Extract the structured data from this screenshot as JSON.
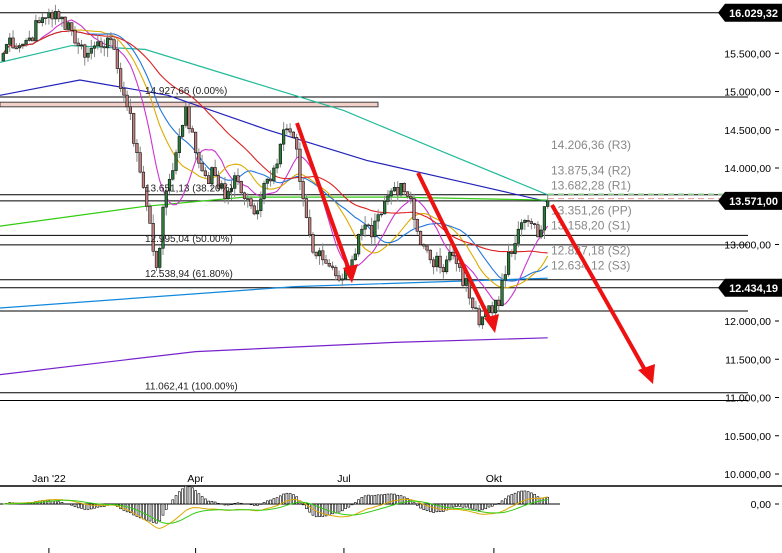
{
  "chart_data": {
    "type": "candlestick",
    "y_scale": "linear",
    "ylim": [
      9900,
      16200
    ],
    "xlim": [
      "2021-12-02",
      "2022-11-10"
    ],
    "grid": false,
    "y_ticks": [
      {
        "value": 15500,
        "label": "15.500,00"
      },
      {
        "value": 15000,
        "label": "15.000,00"
      },
      {
        "value": 14500,
        "label": "14.500,00"
      },
      {
        "value": 14000,
        "label": "14.000,00"
      },
      {
        "value": 13000,
        "label": "13.000,00"
      },
      {
        "value": 12000,
        "label": "12.000,00"
      },
      {
        "value": 11500,
        "label": "11.500,00"
      },
      {
        "value": 11000,
        "label": "11.000,00"
      },
      {
        "value": 10500,
        "label": "10.500,00"
      },
      {
        "value": 10000,
        "label": "10.000,00"
      }
    ],
    "price_badges": [
      {
        "value": 16029.32,
        "label": "16.029,32"
      },
      {
        "value": 13571.0,
        "label": "13.571,00"
      },
      {
        "value": 12434.19,
        "label": "12.434,19"
      }
    ],
    "x_ticks": [
      {
        "date": "2022-01-01",
        "label": "Jan '22"
      },
      {
        "date": "2022-04-01",
        "label": "Apr"
      },
      {
        "date": "2022-07-01",
        "label": "Jul"
      },
      {
        "date": "2022-10-01",
        "label": "Okt"
      }
    ],
    "closes": [
      [
        "2021-12-02",
        15400
      ],
      [
        "2021-12-08",
        15700
      ],
      [
        "2021-12-14",
        15600
      ],
      [
        "2021-12-20",
        15700
      ],
      [
        "2021-12-26",
        15900
      ],
      [
        "2022-01-01",
        16029
      ],
      [
        "2022-01-07",
        15950
      ],
      [
        "2022-01-13",
        15900
      ],
      [
        "2022-01-19",
        15600
      ],
      [
        "2022-01-25",
        15500
      ],
      [
        "2022-01-31",
        15650
      ],
      [
        "2022-02-06",
        15700
      ],
      [
        "2022-02-12",
        15300
      ],
      [
        "2022-02-18",
        14800
      ],
      [
        "2022-02-24",
        14200
      ],
      [
        "2022-03-02",
        13500
      ],
      [
        "2022-03-08",
        12700
      ],
      [
        "2022-03-14",
        13700
      ],
      [
        "2022-03-20",
        14200
      ],
      [
        "2022-03-26",
        14800
      ],
      [
        "2022-04-01",
        14200
      ],
      [
        "2022-04-07",
        13900
      ],
      [
        "2022-04-13",
        13900
      ],
      [
        "2022-04-19",
        13600
      ],
      [
        "2022-04-25",
        13900
      ],
      [
        "2022-05-01",
        13600
      ],
      [
        "2022-05-07",
        13400
      ],
      [
        "2022-05-13",
        13800
      ],
      [
        "2022-05-19",
        14000
      ],
      [
        "2022-05-25",
        14500
      ],
      [
        "2022-05-31",
        14400
      ],
      [
        "2022-06-06",
        13600
      ],
      [
        "2022-06-12",
        12900
      ],
      [
        "2022-06-18",
        12800
      ],
      [
        "2022-06-24",
        12700
      ],
      [
        "2022-06-30",
        12550
      ],
      [
        "2022-07-06",
        12800
      ],
      [
        "2022-07-12",
        13200
      ],
      [
        "2022-07-18",
        13100
      ],
      [
        "2022-07-24",
        13400
      ],
      [
        "2022-07-30",
        13700
      ],
      [
        "2022-08-05",
        13800
      ],
      [
        "2022-08-11",
        13600
      ],
      [
        "2022-08-17",
        13000
      ],
      [
        "2022-08-23",
        12800
      ],
      [
        "2022-08-29",
        12700
      ],
      [
        "2022-09-04",
        12900
      ],
      [
        "2022-09-10",
        12700
      ],
      [
        "2022-09-16",
        12300
      ],
      [
        "2022-09-22",
        11950
      ],
      [
        "2022-09-28",
        12200
      ],
      [
        "2022-10-04",
        12200
      ],
      [
        "2022-10-10",
        12900
      ],
      [
        "2022-10-16",
        13200
      ],
      [
        "2022-10-22",
        13300
      ],
      [
        "2022-10-28",
        13100
      ],
      [
        "2022-11-03",
        13571
      ]
    ],
    "horizontal_lines": [
      16029.32,
      14927.66,
      13651.13,
      13571,
      13120,
      12995.04,
      12538.94,
      12434.19,
      12130,
      11062.41,
      10960
    ],
    "resistance_zone": [
      14800,
      14860
    ],
    "fibonacci": [
      {
        "value": 14927.66,
        "label": "14.927,66 (0.00%)"
      },
      {
        "value": 13651.13,
        "label": "13.651,13 (38.20%)"
      },
      {
        "value": 12995.04,
        "label": "12.995,04 (50.00%)"
      },
      {
        "value": 12538.94,
        "label": "12.538,94 (61.80%)"
      },
      {
        "value": 11062.41,
        "label": "11.062,41 (100.00%)"
      }
    ],
    "pivots": [
      {
        "value": 14206.36,
        "label": "14.206,36 (R3)"
      },
      {
        "value": 13875.34,
        "label": "13.875,34 (R2)"
      },
      {
        "value": 13682.28,
        "label": "13.682,28 (R1)"
      },
      {
        "value": 13351.26,
        "label": "13.351,26 (PP)"
      },
      {
        "value": 13158.2,
        "label": "13.158,20 (S1)"
      },
      {
        "value": 12827.18,
        "label": "12.827,18 (S2)"
      },
      {
        "value": 12634.12,
        "label": "12.634,12 (S3)"
      }
    ],
    "long_lines": [
      {
        "color": "#22bb99",
        "points": [
          [
            "2021-12-02",
            15380
          ],
          [
            "2022-01-15",
            15600
          ],
          [
            "2022-03-01",
            15550
          ],
          [
            "2022-05-01",
            15150
          ],
          [
            "2022-07-01",
            14750
          ],
          [
            "2022-09-01",
            14200
          ],
          [
            "2022-11-03",
            13650
          ]
        ]
      },
      {
        "color": "#2222bb",
        "points": [
          [
            "2021-12-02",
            14950
          ],
          [
            "2022-01-20",
            15150
          ],
          [
            "2022-03-15",
            14950
          ],
          [
            "2022-05-15",
            14500
          ],
          [
            "2022-07-15",
            14100
          ],
          [
            "2022-09-15",
            13800
          ],
          [
            "2022-11-03",
            13560
          ]
        ]
      },
      {
        "color": "#33cc11",
        "points": [
          [
            "2021-12-02",
            13240
          ],
          [
            "2022-03-01",
            13500
          ],
          [
            "2022-05-01",
            13620
          ],
          [
            "2022-08-01",
            13620
          ],
          [
            "2022-11-03",
            13580
          ]
        ]
      },
      {
        "color": "#1188dd",
        "points": [
          [
            "2021-12-02",
            12170
          ],
          [
            "2022-06-01",
            12450
          ],
          [
            "2022-11-03",
            12560
          ]
        ]
      },
      {
        "color": "#7722cc",
        "points": [
          [
            "2021-12-02",
            11300
          ],
          [
            "2022-04-01",
            11600
          ],
          [
            "2022-08-01",
            11720
          ],
          [
            "2022-11-03",
            11780
          ]
        ]
      }
    ],
    "moving_averages": [
      {
        "window": 4,
        "color": "#cc33cc"
      },
      {
        "window": 7,
        "color": "#ddaa00"
      },
      {
        "window": 9,
        "color": "#2277dd"
      },
      {
        "window": 16,
        "color": "#dd2222"
      }
    ],
    "macd_zero_label": "0,00",
    "colors": {
      "up": "#2a7a3a",
      "down": "#c08080",
      "arrow": "#ee1111",
      "badge": "#000000"
    }
  }
}
